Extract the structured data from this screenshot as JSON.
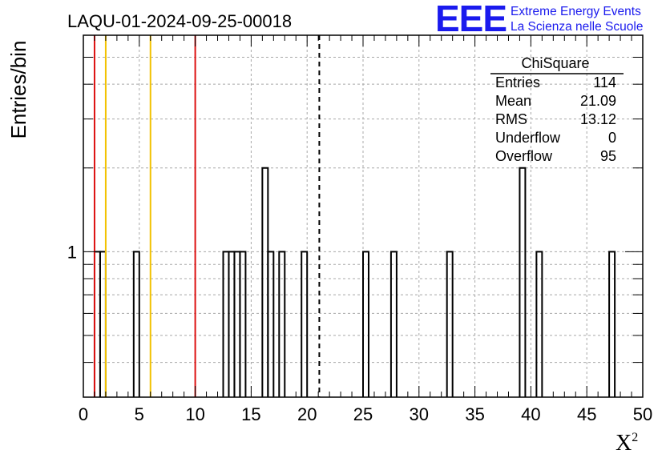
{
  "chart_data": {
    "type": "histogram",
    "title": "LAQU-01-2024-09-25-00018",
    "xlabel": "X",
    "xlabel_sup": "2",
    "ylabel": "Entries/bin",
    "xlim": [
      0,
      50
    ],
    "ylim_log": [
      0.3,
      6
    ],
    "y_scale": "log",
    "grid": true,
    "x_ticks": [
      "0",
      "5",
      "10",
      "15",
      "20",
      "25",
      "30",
      "35",
      "40",
      "45",
      "50"
    ],
    "y_ticks": [
      "1"
    ],
    "bin_width": 0.5,
    "bins": [
      {
        "x": 1.0,
        "v": 1
      },
      {
        "x": 1.5,
        "v": 1
      },
      {
        "x": 4.5,
        "v": 1
      },
      {
        "x": 12.5,
        "v": 1
      },
      {
        "x": 13.0,
        "v": 1
      },
      {
        "x": 13.5,
        "v": 1
      },
      {
        "x": 14.0,
        "v": 1
      },
      {
        "x": 16.0,
        "v": 2
      },
      {
        "x": 16.5,
        "v": 1
      },
      {
        "x": 17.5,
        "v": 1
      },
      {
        "x": 19.5,
        "v": 1
      },
      {
        "x": 25.0,
        "v": 1
      },
      {
        "x": 27.5,
        "v": 1
      },
      {
        "x": 32.5,
        "v": 1
      },
      {
        "x": 39.0,
        "v": 2
      },
      {
        "x": 40.5,
        "v": 1
      },
      {
        "x": 47.0,
        "v": 1
      }
    ],
    "vlines": [
      {
        "x": 1,
        "color": "#dd1111"
      },
      {
        "x": 2,
        "color": "#f2c200"
      },
      {
        "x": 6,
        "color": "#f2c200"
      },
      {
        "x": 10,
        "color": "#dd1111"
      },
      {
        "x": 21.09,
        "color": "#000000",
        "dashed": true
      }
    ],
    "stats": {
      "name": "ChiSquare",
      "rows": [
        {
          "label": "Entries",
          "value": "114"
        },
        {
          "label": "Mean",
          "value": "21.09"
        },
        {
          "label": "RMS",
          "value": "13.12"
        },
        {
          "label": "Underflow",
          "value": "0"
        },
        {
          "label": "Overflow",
          "value": "95"
        }
      ]
    }
  },
  "logo": {
    "mark": "EEE",
    "line1": "Extreme Energy Events",
    "line2": "La Scienza nelle Scuole",
    "color": "#1a1aee"
  }
}
